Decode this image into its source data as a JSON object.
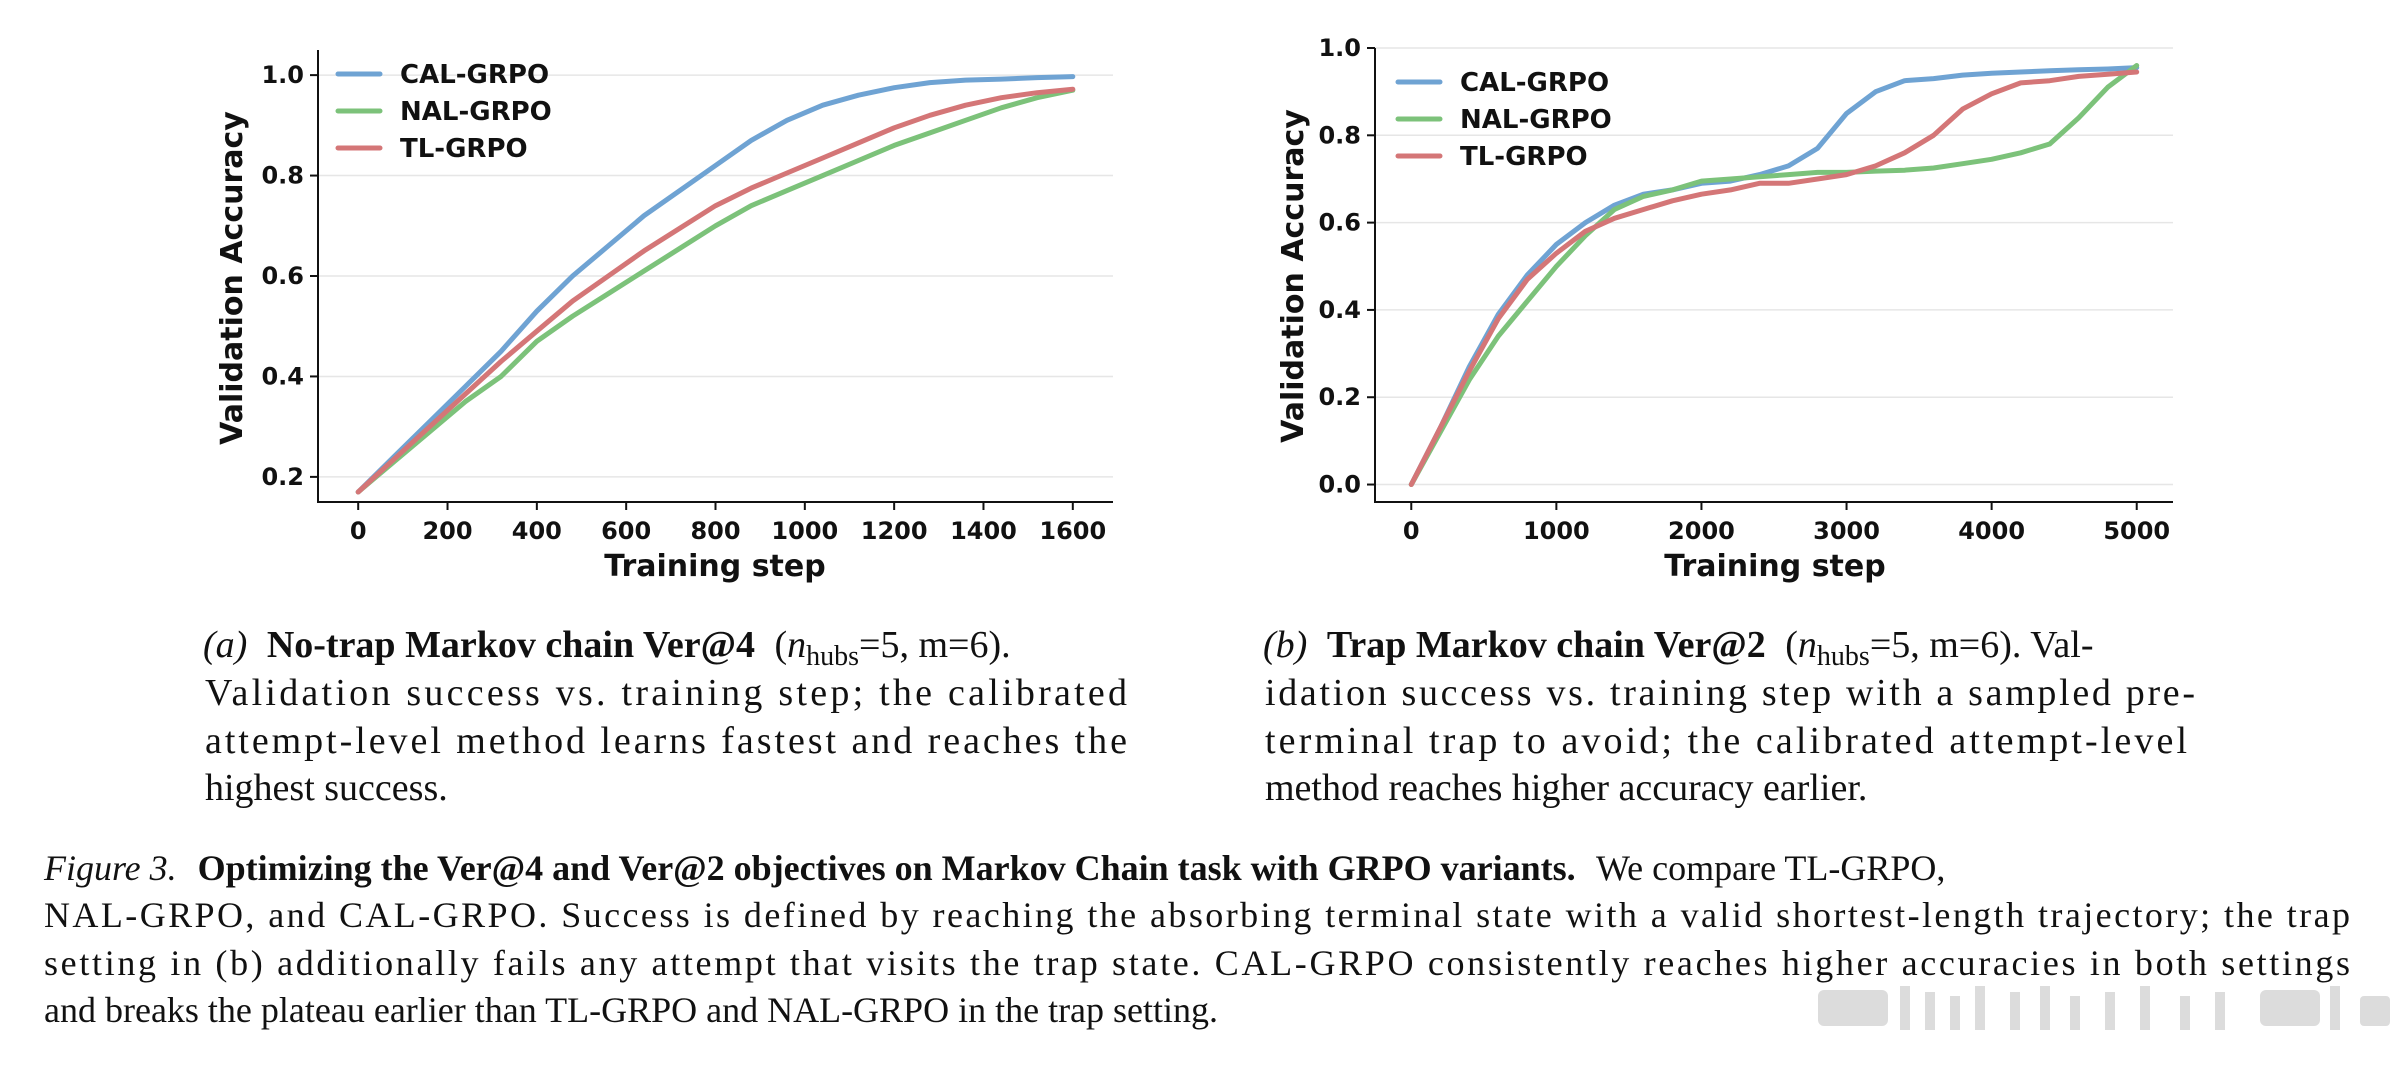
{
  "colors": {
    "CAL-GRPO": "#6fa3d3",
    "NAL-GRPO": "#7cc27a",
    "TL-GRPO": "#d47677"
  },
  "chart_data": [
    {
      "type": "line",
      "title": "",
      "xlabel": "Training step",
      "ylabel": "Validation Accuracy",
      "xlim": [
        -90,
        1690
      ],
      "ylim": [
        0.15,
        1.05
      ],
      "xticks": [
        0,
        200,
        400,
        600,
        800,
        1000,
        1200,
        1400,
        1600
      ],
      "yticks": [
        0.2,
        0.4,
        0.6,
        0.8,
        1.0
      ],
      "legend": "upper-left",
      "series": [
        {
          "name": "CAL-GRPO",
          "x": [
            0,
            80,
            160,
            240,
            320,
            400,
            480,
            560,
            640,
            720,
            800,
            880,
            960,
            1040,
            1120,
            1200,
            1280,
            1360,
            1440,
            1520,
            1600
          ],
          "y": [
            0.17,
            0.24,
            0.31,
            0.38,
            0.45,
            0.53,
            0.6,
            0.66,
            0.72,
            0.77,
            0.82,
            0.87,
            0.91,
            0.94,
            0.96,
            0.975,
            0.985,
            0.99,
            0.992,
            0.995,
            0.997
          ]
        },
        {
          "name": "NAL-GRPO",
          "x": [
            0,
            80,
            160,
            240,
            320,
            400,
            480,
            560,
            640,
            720,
            800,
            880,
            960,
            1040,
            1120,
            1200,
            1280,
            1360,
            1440,
            1520,
            1600
          ],
          "y": [
            0.17,
            0.23,
            0.29,
            0.35,
            0.4,
            0.47,
            0.52,
            0.565,
            0.61,
            0.655,
            0.7,
            0.74,
            0.77,
            0.8,
            0.83,
            0.86,
            0.885,
            0.91,
            0.935,
            0.955,
            0.97
          ]
        },
        {
          "name": "TL-GRPO",
          "x": [
            0,
            80,
            160,
            240,
            320,
            400,
            480,
            560,
            640,
            720,
            800,
            880,
            960,
            1040,
            1120,
            1200,
            1280,
            1360,
            1440,
            1520,
            1600
          ],
          "y": [
            0.17,
            0.235,
            0.3,
            0.365,
            0.43,
            0.49,
            0.55,
            0.6,
            0.65,
            0.695,
            0.74,
            0.775,
            0.805,
            0.835,
            0.865,
            0.895,
            0.92,
            0.94,
            0.955,
            0.965,
            0.972
          ]
        }
      ]
    },
    {
      "type": "line",
      "title": "",
      "xlabel": "Training step",
      "ylabel": "Validation Accuracy",
      "xlim": [
        -250,
        5250
      ],
      "ylim": [
        -0.04,
        1.0
      ],
      "xticks": [
        0,
        1000,
        2000,
        3000,
        4000,
        5000
      ],
      "yticks": [
        0.0,
        0.2,
        0.4,
        0.6,
        0.8,
        1.0
      ],
      "legend": "upper-left",
      "series": [
        {
          "name": "CAL-GRPO",
          "x": [
            0,
            200,
            400,
            600,
            800,
            1000,
            1200,
            1400,
            1600,
            1800,
            2000,
            2200,
            2400,
            2600,
            2800,
            3000,
            3200,
            3400,
            3600,
            3800,
            4000,
            4200,
            4400,
            4600,
            4800,
            5000
          ],
          "y": [
            0.0,
            0.13,
            0.27,
            0.39,
            0.48,
            0.55,
            0.6,
            0.64,
            0.665,
            0.675,
            0.69,
            0.695,
            0.71,
            0.73,
            0.77,
            0.85,
            0.9,
            0.925,
            0.93,
            0.938,
            0.942,
            0.945,
            0.948,
            0.95,
            0.952,
            0.955
          ]
        },
        {
          "name": "NAL-GRPO",
          "x": [
            0,
            200,
            400,
            600,
            800,
            1000,
            1200,
            1400,
            1600,
            1800,
            2000,
            2200,
            2400,
            2600,
            2800,
            3000,
            3200,
            3400,
            3600,
            3800,
            4000,
            4200,
            4400,
            4600,
            4800,
            5000
          ],
          "y": [
            0.0,
            0.12,
            0.24,
            0.34,
            0.42,
            0.5,
            0.57,
            0.63,
            0.66,
            0.675,
            0.695,
            0.7,
            0.705,
            0.71,
            0.715,
            0.715,
            0.718,
            0.72,
            0.725,
            0.735,
            0.745,
            0.76,
            0.78,
            0.84,
            0.91,
            0.96
          ]
        },
        {
          "name": "TL-GRPO",
          "x": [
            0,
            200,
            400,
            600,
            800,
            1000,
            1200,
            1400,
            1600,
            1800,
            2000,
            2200,
            2400,
            2600,
            2800,
            3000,
            3200,
            3400,
            3600,
            3800,
            4000,
            4200,
            4400,
            4600,
            4800,
            5000
          ],
          "y": [
            0.0,
            0.13,
            0.26,
            0.38,
            0.47,
            0.53,
            0.58,
            0.61,
            0.63,
            0.65,
            0.665,
            0.675,
            0.69,
            0.69,
            0.7,
            0.71,
            0.73,
            0.76,
            0.8,
            0.86,
            0.895,
            0.92,
            0.925,
            0.935,
            0.94,
            0.945
          ]
        }
      ]
    }
  ],
  "subcaptions": [
    {
      "label": "(a)",
      "bold": "No-trap Markov chain Ver@4",
      "paren_open": "(",
      "n_symbol": "n",
      "n_sub": "hubs",
      "params": "=5, m=6).",
      "lines": [
        "Validation success vs. training step; the calibrated",
        "attempt-level method learns fastest and reaches the",
        "highest success."
      ]
    },
    {
      "label": "(b)",
      "bold": "Trap Markov chain Ver@2",
      "paren_open": "(",
      "n_symbol": "n",
      "n_sub": "hubs",
      "params": "=5, m=6). Val-",
      "lines": [
        "idation success vs. training step with a sampled pre-",
        "terminal trap to avoid; the calibrated attempt-level",
        "method reaches higher accuracy earlier."
      ]
    }
  ],
  "caption": {
    "label": "Figure 3.",
    "bold": "Optimizing the Ver@4 and Ver@2 objectives on Markov Chain task with GRPO variants.",
    "first_rest": "We compare TL-GRPO,",
    "lines": [
      "NAL-GRPO, and CAL-GRPO. Success is defined by reaching the absorbing terminal state with a valid shortest-length trajectory; the trap",
      "setting in (b) additionally fails any attempt that visits the trap state. CAL-GRPO consistently reaches higher accuracies in both settings",
      "and breaks the plateau earlier than TL-GRPO and NAL-GRPO in the trap setting."
    ]
  }
}
